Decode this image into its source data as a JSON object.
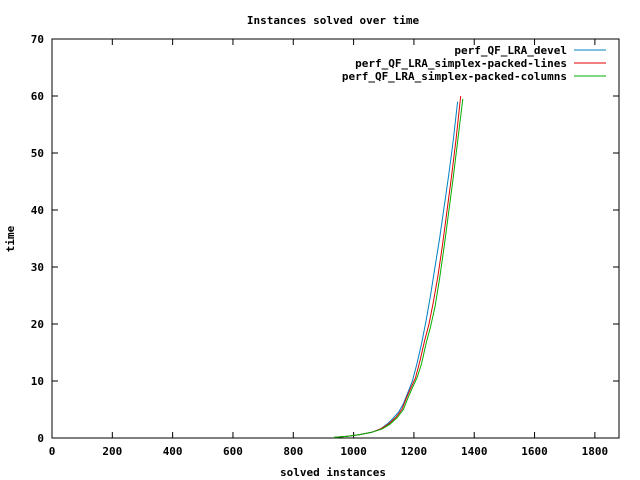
{
  "chart_data": {
    "type": "line",
    "title": "Instances solved over time",
    "xlabel": "solved instances",
    "ylabel": "time",
    "xlim": [
      0,
      1880
    ],
    "ylim": [
      0,
      70
    ],
    "x_ticks": [
      0,
      200,
      400,
      600,
      800,
      1000,
      1200,
      1400,
      1600,
      1800
    ],
    "y_ticks": [
      0,
      10,
      20,
      30,
      40,
      50,
      60,
      70
    ],
    "grid": false,
    "legend_position": "top-right",
    "series": [
      {
        "name": "perf_QF_LRA_devel",
        "color": "#0080c0",
        "points": [
          [
            935,
            0.1
          ],
          [
            980,
            0.3
          ],
          [
            1020,
            0.6
          ],
          [
            1060,
            1.0
          ],
          [
            1090,
            1.6
          ],
          [
            1110,
            2.4
          ],
          [
            1130,
            3.4
          ],
          [
            1150,
            4.6
          ],
          [
            1165,
            6.0
          ],
          [
            1180,
            8.0
          ],
          [
            1195,
            10.0
          ],
          [
            1210,
            13.0
          ],
          [
            1225,
            16.5
          ],
          [
            1240,
            20.5
          ],
          [
            1255,
            25.0
          ],
          [
            1270,
            30.0
          ],
          [
            1285,
            35.0
          ],
          [
            1300,
            40.5
          ],
          [
            1315,
            46.0
          ],
          [
            1330,
            52.0
          ],
          [
            1345,
            59.0
          ]
        ]
      },
      {
        "name": "perf_QF_LRA_simplex-packed-lines",
        "color": "#e00000",
        "points": [
          [
            935,
            0.1
          ],
          [
            980,
            0.3
          ],
          [
            1020,
            0.6
          ],
          [
            1060,
            1.0
          ],
          [
            1090,
            1.6
          ],
          [
            1115,
            2.4
          ],
          [
            1140,
            3.6
          ],
          [
            1160,
            5.0
          ],
          [
            1175,
            7.0
          ],
          [
            1190,
            8.8
          ],
          [
            1205,
            10.5
          ],
          [
            1220,
            13.5
          ],
          [
            1235,
            17.0
          ],
          [
            1250,
            20.0
          ],
          [
            1265,
            24.0
          ],
          [
            1280,
            28.5
          ],
          [
            1295,
            34.0
          ],
          [
            1310,
            40.0
          ],
          [
            1325,
            46.0
          ],
          [
            1340,
            52.5
          ],
          [
            1355,
            60.0
          ]
        ]
      },
      {
        "name": "perf_QF_LRA_simplex-packed-columns",
        "color": "#00b000",
        "points": [
          [
            935,
            0.1
          ],
          [
            980,
            0.3
          ],
          [
            1020,
            0.6
          ],
          [
            1060,
            1.0
          ],
          [
            1095,
            1.6
          ],
          [
            1120,
            2.4
          ],
          [
            1145,
            3.6
          ],
          [
            1165,
            5.0
          ],
          [
            1180,
            7.0
          ],
          [
            1195,
            8.8
          ],
          [
            1210,
            10.5
          ],
          [
            1225,
            13.0
          ],
          [
            1240,
            16.5
          ],
          [
            1255,
            19.5
          ],
          [
            1270,
            23.0
          ],
          [
            1285,
            28.0
          ],
          [
            1300,
            33.5
          ],
          [
            1315,
            39.5
          ],
          [
            1330,
            45.5
          ],
          [
            1345,
            52.0
          ],
          [
            1362,
            59.5
          ]
        ]
      }
    ]
  }
}
